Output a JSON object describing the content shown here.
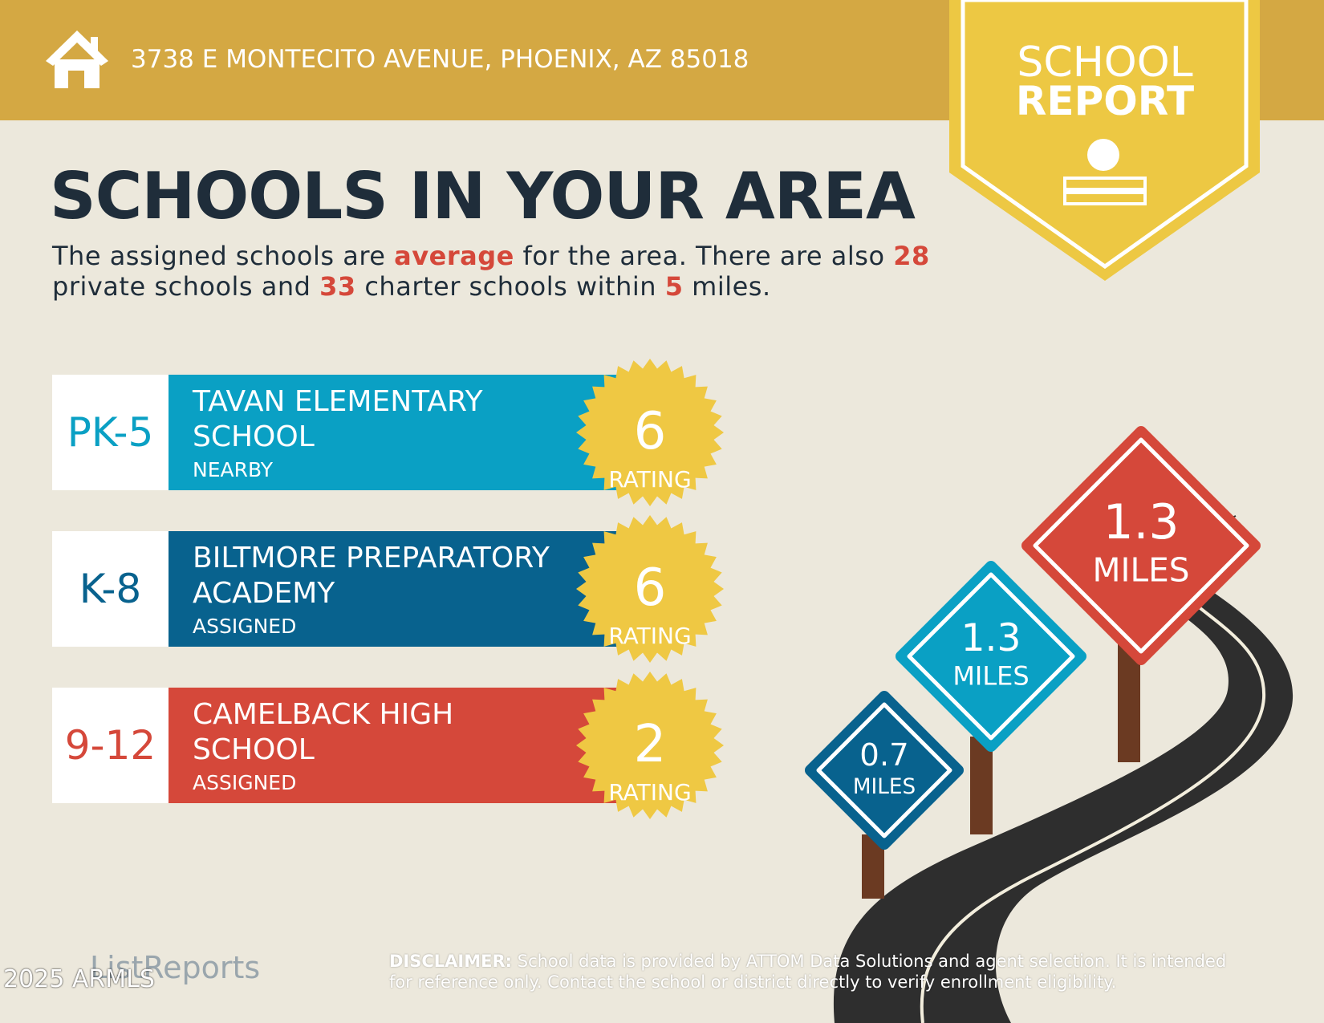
{
  "header": {
    "address": "3738 E MONTECITO AVENUE, PHOENIX, AZ 85018",
    "badge": [
      "SCHOOL",
      "REPORT"
    ]
  },
  "title": "SCHOOLS IN YOUR AREA",
  "summary": [
    "The assigned schools are ",
    "average",
    " for the area. There are also ",
    28,
    " private schools and ",
    33,
    " charter schools within ",
    5,
    " miles."
  ],
  "schools": [
    {
      "grade": "PK-5",
      "name_lines": [
        "TAVAN ELEMENTARY",
        "SCHOOL"
      ],
      "status": "NEARBY",
      "rating": 6,
      "rating_label": "RATING",
      "distance": 1.3,
      "distance_unit": "MILES",
      "color": "#0aa0c4"
    },
    {
      "grade": "K-8",
      "name_lines": [
        "BILTMORE PREPARATORY",
        "ACADEMY"
      ],
      "status": "ASSIGNED",
      "rating": 6,
      "rating_label": "RATING",
      "distance": 0.7,
      "distance_unit": "MILES",
      "color": "#08628e"
    },
    {
      "grade": "9-12",
      "name_lines": [
        "CAMELBACK HIGH",
        "SCHOOL"
      ],
      "status": "ASSIGNED",
      "rating": 2,
      "rating_label": "RATING",
      "distance": 1.3,
      "distance_unit": "MILES",
      "color": "#d5483a"
    }
  ],
  "footer": {
    "logo": "ListReports",
    "watermark": "2025 ARMLS",
    "disclaimer_label": "DISCLAIMER:",
    "disclaimer": [
      "School data is provided by ATTOM Data Solutions and agent selection. It is intended",
      "for reference only. Contact the school or district directly to verify enrollment eligibility."
    ]
  }
}
